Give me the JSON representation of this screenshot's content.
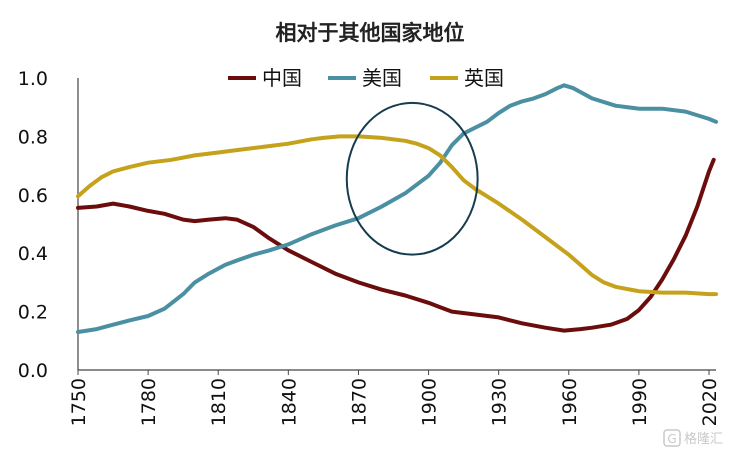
{
  "chart_data": {
    "type": "line",
    "title": "相对于其他国家地位",
    "xlabel": "",
    "ylabel": "",
    "xlim": [
      1750,
      2023
    ],
    "ylim": [
      0,
      1.0
    ],
    "x_ticks": [
      "1750",
      "1780",
      "1810",
      "1840",
      "1870",
      "1900",
      "1930",
      "1960",
      "1990",
      "2020"
    ],
    "y_ticks": [
      "0.0",
      "0.2",
      "0.4",
      "0.6",
      "0.8",
      "1.0"
    ],
    "legend_position": "top-center",
    "grid": false,
    "series": [
      {
        "name": "中国",
        "color": "#6b0d0d",
        "points": [
          [
            1750,
            0.555
          ],
          [
            1758,
            0.56
          ],
          [
            1765,
            0.57
          ],
          [
            1772,
            0.56
          ],
          [
            1780,
            0.545
          ],
          [
            1787,
            0.535
          ],
          [
            1795,
            0.515
          ],
          [
            1800,
            0.51
          ],
          [
            1806,
            0.515
          ],
          [
            1813,
            0.52
          ],
          [
            1818,
            0.515
          ],
          [
            1825,
            0.49
          ],
          [
            1832,
            0.45
          ],
          [
            1840,
            0.41
          ],
          [
            1850,
            0.37
          ],
          [
            1860,
            0.33
          ],
          [
            1870,
            0.3
          ],
          [
            1880,
            0.275
          ],
          [
            1890,
            0.255
          ],
          [
            1900,
            0.23
          ],
          [
            1905,
            0.215
          ],
          [
            1910,
            0.2
          ],
          [
            1920,
            0.19
          ],
          [
            1930,
            0.18
          ],
          [
            1940,
            0.16
          ],
          [
            1950,
            0.145
          ],
          [
            1958,
            0.135
          ],
          [
            1965,
            0.14
          ],
          [
            1970,
            0.145
          ],
          [
            1978,
            0.155
          ],
          [
            1985,
            0.175
          ],
          [
            1990,
            0.205
          ],
          [
            1995,
            0.25
          ],
          [
            2000,
            0.31
          ],
          [
            2005,
            0.38
          ],
          [
            2010,
            0.46
          ],
          [
            2015,
            0.56
          ],
          [
            2020,
            0.68
          ],
          [
            2022,
            0.72
          ]
        ]
      },
      {
        "name": "美国",
        "color": "#4a8fa2",
        "points": [
          [
            1750,
            0.13
          ],
          [
            1758,
            0.14
          ],
          [
            1765,
            0.155
          ],
          [
            1772,
            0.17
          ],
          [
            1780,
            0.185
          ],
          [
            1787,
            0.21
          ],
          [
            1795,
            0.26
          ],
          [
            1800,
            0.3
          ],
          [
            1806,
            0.33
          ],
          [
            1813,
            0.36
          ],
          [
            1818,
            0.375
          ],
          [
            1825,
            0.395
          ],
          [
            1832,
            0.41
          ],
          [
            1840,
            0.43
          ],
          [
            1850,
            0.465
          ],
          [
            1860,
            0.495
          ],
          [
            1870,
            0.52
          ],
          [
            1880,
            0.56
          ],
          [
            1890,
            0.605
          ],
          [
            1900,
            0.665
          ],
          [
            1905,
            0.71
          ],
          [
            1910,
            0.77
          ],
          [
            1915,
            0.81
          ],
          [
            1920,
            0.83
          ],
          [
            1925,
            0.85
          ],
          [
            1930,
            0.88
          ],
          [
            1935,
            0.905
          ],
          [
            1940,
            0.92
          ],
          [
            1945,
            0.93
          ],
          [
            1950,
            0.945
          ],
          [
            1955,
            0.965
          ],
          [
            1958,
            0.975
          ],
          [
            1962,
            0.965
          ],
          [
            1970,
            0.93
          ],
          [
            1980,
            0.905
          ],
          [
            1990,
            0.895
          ],
          [
            2000,
            0.895
          ],
          [
            2010,
            0.885
          ],
          [
            2020,
            0.86
          ],
          [
            2023,
            0.85
          ]
        ]
      },
      {
        "name": "英国",
        "color": "#c6a21c",
        "points": [
          [
            1750,
            0.595
          ],
          [
            1755,
            0.63
          ],
          [
            1760,
            0.66
          ],
          [
            1765,
            0.68
          ],
          [
            1772,
            0.695
          ],
          [
            1780,
            0.71
          ],
          [
            1790,
            0.72
          ],
          [
            1800,
            0.735
          ],
          [
            1810,
            0.745
          ],
          [
            1820,
            0.755
          ],
          [
            1830,
            0.765
          ],
          [
            1840,
            0.775
          ],
          [
            1850,
            0.79
          ],
          [
            1855,
            0.795
          ],
          [
            1862,
            0.8
          ],
          [
            1870,
            0.8
          ],
          [
            1880,
            0.795
          ],
          [
            1890,
            0.785
          ],
          [
            1895,
            0.775
          ],
          [
            1900,
            0.76
          ],
          [
            1905,
            0.735
          ],
          [
            1910,
            0.695
          ],
          [
            1915,
            0.65
          ],
          [
            1920,
            0.62
          ],
          [
            1930,
            0.57
          ],
          [
            1940,
            0.515
          ],
          [
            1950,
            0.455
          ],
          [
            1960,
            0.395
          ],
          [
            1965,
            0.36
          ],
          [
            1970,
            0.325
          ],
          [
            1975,
            0.3
          ],
          [
            1980,
            0.285
          ],
          [
            1990,
            0.27
          ],
          [
            2000,
            0.265
          ],
          [
            2010,
            0.265
          ],
          [
            2020,
            0.26
          ],
          [
            2023,
            0.26
          ]
        ]
      }
    ],
    "annotations": [
      {
        "type": "ellipse",
        "center": [
          1893,
          0.655
        ],
        "radius_years": 28,
        "radius_value": 0.26,
        "stroke": "#163c4f"
      }
    ]
  },
  "watermark": {
    "text": "格隆汇",
    "icon": "logo-g-icon"
  }
}
